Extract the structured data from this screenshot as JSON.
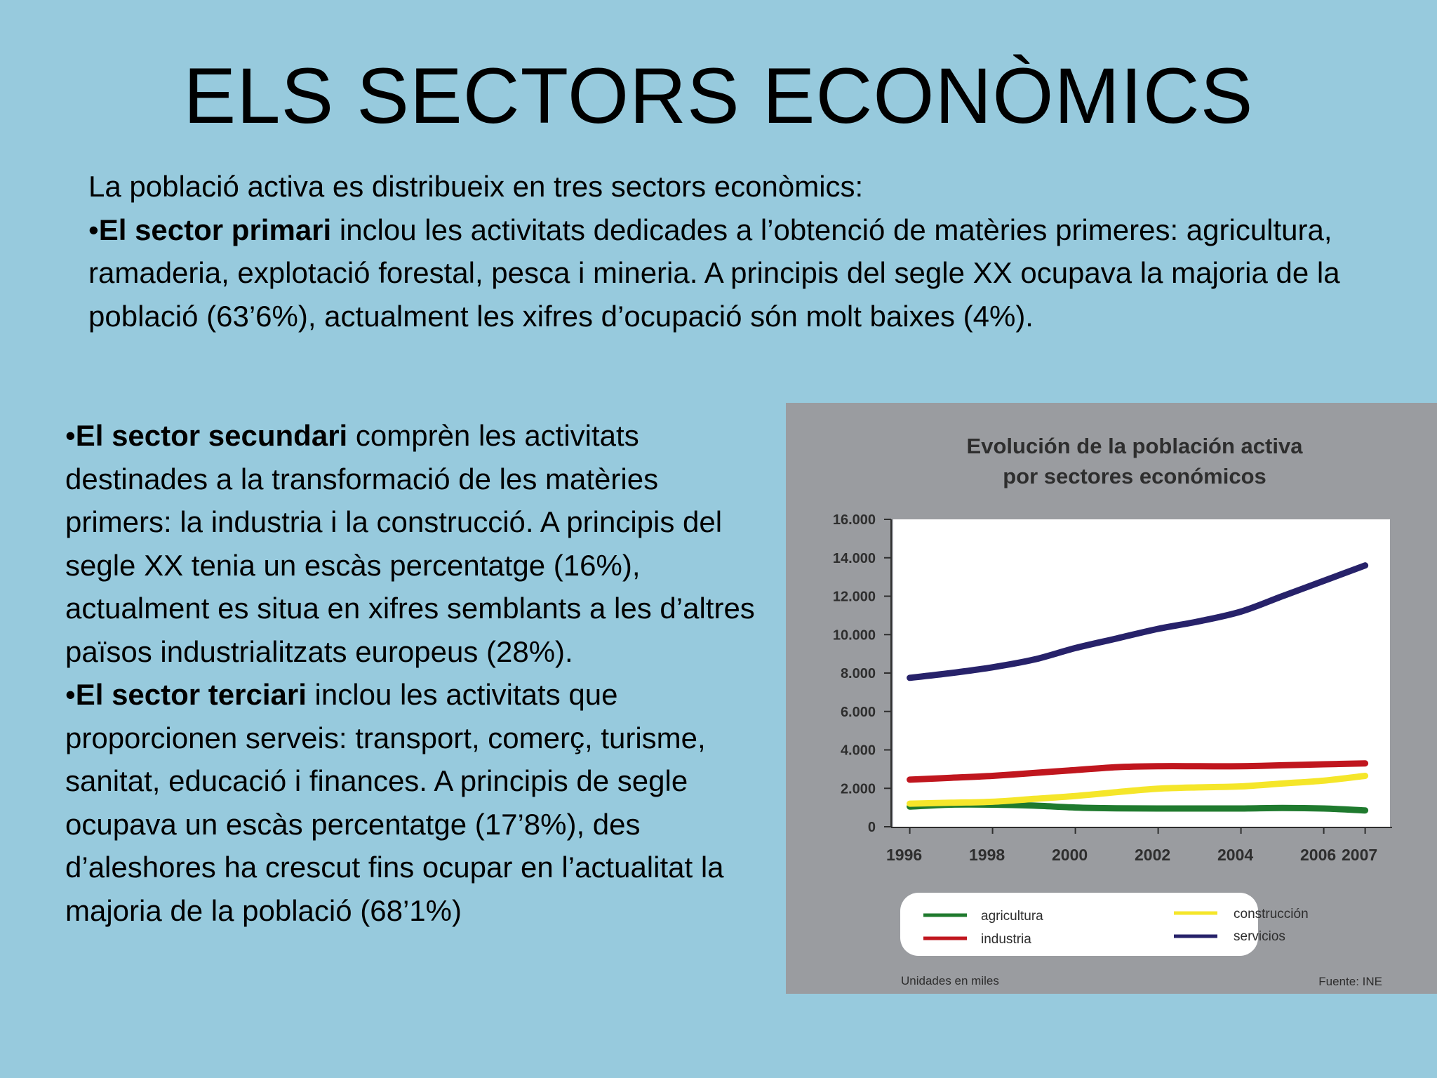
{
  "slide": {
    "title": "ELS SECTORS ECONÒMICS",
    "intro": "La població activa es distribueix en tres sectors econòmics:",
    "bullets": [
      {
        "marker": "•",
        "bold": "El sector primari",
        "text": " inclou les activitats dedicades a l’obtenció de matèries primeres: agricultura, ramaderia, explotació forestal, pesca i mineria. A principis del segle XX ocupava la majoria de la població (63’6%), actualment les xifres d’ocupació són molt baixes (4%)."
      },
      {
        "marker": "•",
        "bold": "El sector secundari",
        "text": " comprèn les activitats destinades a la transformació de les matèries primers: la industria i la construcció. A principis del segle XX tenia un escàs percentatge (16%), actualment es situa en xifres semblants a les d’altres països industrialitzats europeus (28%)."
      },
      {
        "marker": "•",
        "bold": "El sector terciari",
        "text": " inclou les activitats que proporcionen serveis: transport, comerç, turisme, sanitat, educació i finances. A principis de segle ocupava un escàs percentatge (17’8%), des d’aleshores ha crescut fins ocupar en l’actualitat la majoria de la població (68’1%)"
      }
    ]
  },
  "chart_data": {
    "type": "line",
    "title": "Evolución de la población activa",
    "subtitle": "por sectores económicos",
    "x": [
      1996,
      1997,
      1998,
      1999,
      2000,
      2001,
      2002,
      2003,
      2004,
      2005,
      2006,
      2007
    ],
    "x_tick_labels": [
      "1996",
      "1998",
      "2000",
      "2002",
      "2004",
      "2006",
      "2007"
    ],
    "x_tick_values": [
      1996,
      1998,
      2000,
      2002,
      2004,
      2006,
      2007
    ],
    "y_tick_labels": [
      "0",
      "2.000",
      "4.000",
      "6.000",
      "8.000",
      "10.000",
      "12.000",
      "14.000",
      "16.000"
    ],
    "y_tick_values": [
      0,
      2000,
      4000,
      6000,
      8000,
      10000,
      12000,
      14000,
      16000
    ],
    "ylim": [
      0,
      16000
    ],
    "xlim": [
      1995.6,
      2007.6
    ],
    "grid": false,
    "legend_position": "bottom",
    "series": [
      {
        "name": "agricultura",
        "color": "#1f7a2e",
        "values": [
          1050,
          1150,
          1150,
          1100,
          1000,
          960,
          950,
          950,
          950,
          980,
          950,
          850
        ]
      },
      {
        "name": "construcción",
        "color": "#f5e62a",
        "values": [
          1200,
          1250,
          1300,
          1450,
          1600,
          1800,
          1980,
          2050,
          2100,
          2250,
          2400,
          2650
        ]
      },
      {
        "name": "industria",
        "color": "#c0161e",
        "values": [
          2450,
          2550,
          2650,
          2800,
          2950,
          3100,
          3150,
          3150,
          3150,
          3200,
          3250,
          3300
        ]
      },
      {
        "name": "servicios",
        "color": "#27226a",
        "values": [
          7750,
          8000,
          8300,
          8700,
          9300,
          9800,
          10300,
          10700,
          11200,
          12000,
          12800,
          13600
        ]
      }
    ],
    "footnote_left": "Unidades en miles",
    "footnote_right": "Fuente: INE"
  }
}
